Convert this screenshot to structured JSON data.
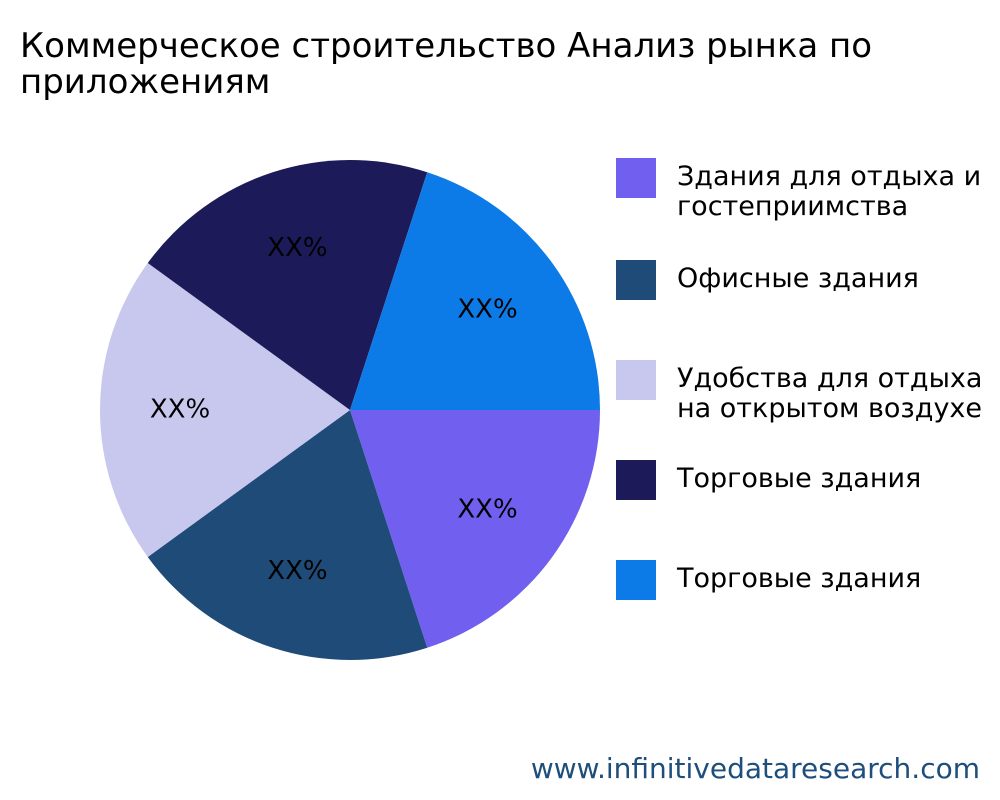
{
  "chart_data": {
    "type": "pie",
    "title": "Коммерческое строительство Анализ рынка по приложениям",
    "slices": [
      {
        "label": "Здания для отдыха и гостеприимства",
        "value": 20,
        "display": "XX%",
        "color": "#7160f0"
      },
      {
        "label": "Офисные здания",
        "value": 20,
        "display": "XX%",
        "color": "#1f4b79"
      },
      {
        "label": "Удобства для отдыха на открытом воздухе",
        "value": 20,
        "display": "XX%",
        "color": "#c8c8ef"
      },
      {
        "label": "Торговые здания",
        "value": 20,
        "display": "XX%",
        "color": "#1c1a58"
      },
      {
        "label": "Торговые здания",
        "value": 20,
        "display": "XX%",
        "color": "#0c7be8"
      }
    ],
    "legend_position": "right"
  },
  "watermark": "www.infinitivedataresearch.com"
}
